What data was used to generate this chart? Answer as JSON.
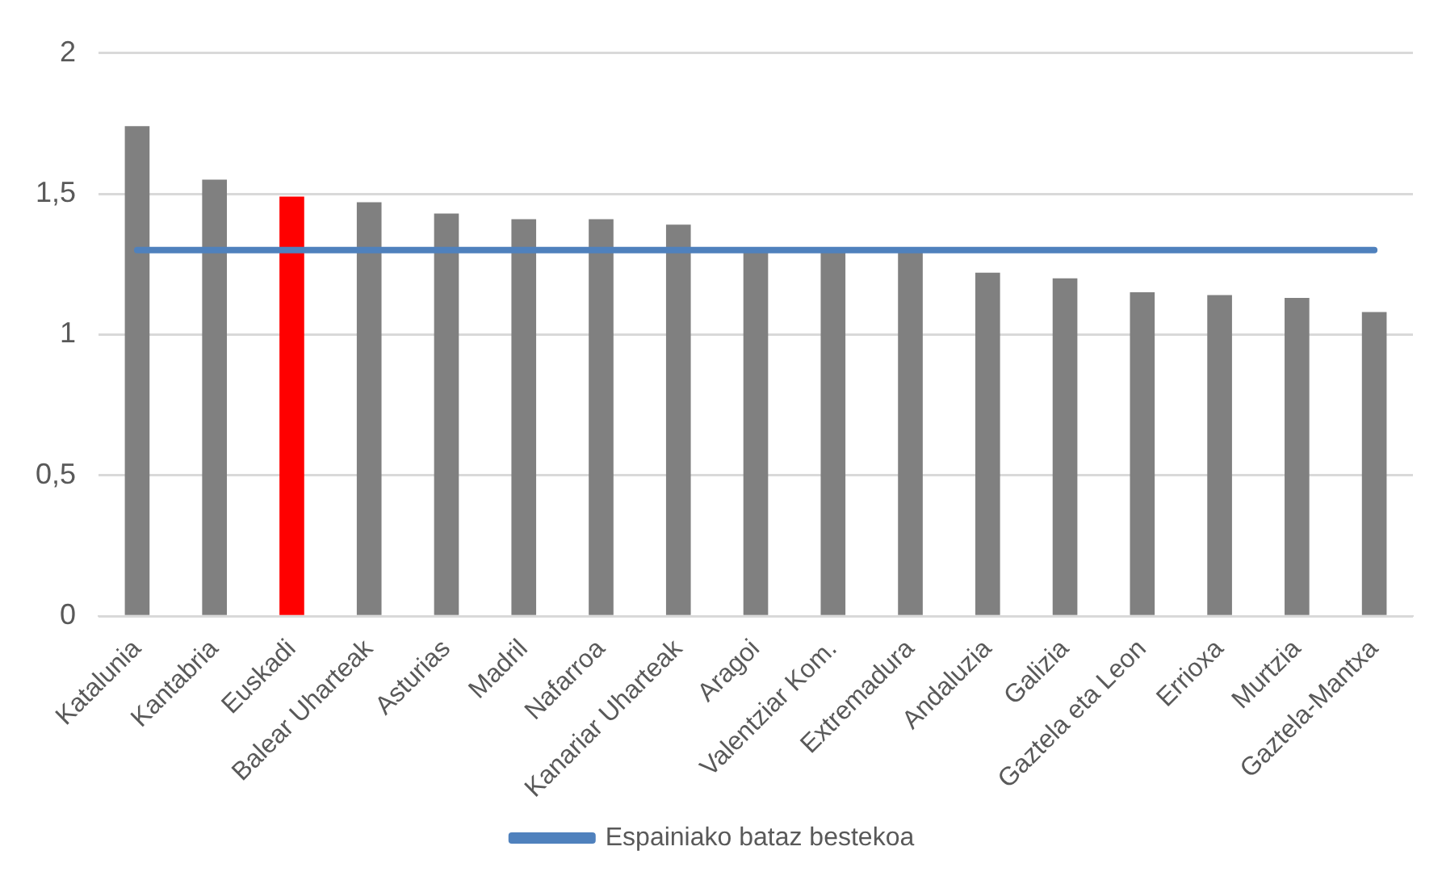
{
  "chart_data": {
    "type": "bar",
    "categories": [
      "Katalunia",
      "Kantabria",
      "Euskadi",
      "Balear Uharteak",
      "Asturias",
      "Madril",
      "Nafarroa",
      "Kanariar Uharteak",
      "Aragoi",
      "Valentziar Kom.",
      "Extremadura",
      "Andaluzia",
      "Galizia",
      "Gaztela eta Leon",
      "Errioxa",
      "Murtzia",
      "Gaztela-Mantxa"
    ],
    "series": [
      {
        "colors": [
          "#808080",
          "#808080",
          "#ff0000",
          "#808080",
          "#808080",
          "#808080",
          "#808080",
          "#808080",
          "#808080",
          "#808080",
          "#808080",
          "#808080",
          "#808080",
          "#808080",
          "#808080",
          "#808080",
          "#808080"
        ],
        "values": [
          1.74,
          1.55,
          1.49,
          1.47,
          1.43,
          1.41,
          1.41,
          1.39,
          1.3,
          1.3,
          1.3,
          1.22,
          1.2,
          1.15,
          1.14,
          1.13,
          1.08
        ]
      },
      {
        "type": "line",
        "name": "Espainiako bataz bestekoa",
        "color": "#4f81bd",
        "values": [
          1.3,
          1.3,
          1.3,
          1.3,
          1.3,
          1.3,
          1.3,
          1.3,
          1.3,
          1.3,
          1.3,
          1.3,
          1.3,
          1.3,
          1.3,
          1.3,
          1.3
        ]
      }
    ],
    "ylim": [
      0,
      2
    ],
    "yticks": [
      0,
      {
        "value": 0.5,
        "label": "0,5"
      },
      1,
      {
        "value": 1.5,
        "label": "1,5"
      },
      2
    ],
    "grid": "y",
    "legend": "bottom",
    "marker": "none",
    "line_style": "solid"
  }
}
